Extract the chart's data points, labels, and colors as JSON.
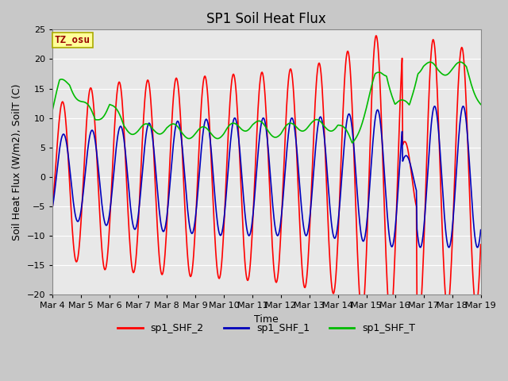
{
  "title": "SP1 Soil Heat Flux",
  "xlabel": "Time",
  "ylabel": "Soil Heat Flux (W/m2), SoilT (C)",
  "ylim": [
    -20,
    25
  ],
  "xlim": [
    0,
    15
  ],
  "xtick_labels": [
    "Mar 4",
    "Mar 5",
    "Mar 6",
    "Mar 7",
    "Mar 8",
    "Mar 9",
    "Mar 10",
    "Mar 11",
    "Mar 12",
    "Mar 13",
    "Mar 14",
    "Mar 15",
    "Mar 16",
    "Mar 17",
    "Mar 18",
    "Mar 19"
  ],
  "xtick_positions": [
    0,
    1,
    2,
    3,
    4,
    5,
    6,
    7,
    8,
    9,
    10,
    11,
    12,
    13,
    14,
    15
  ],
  "color_red": "#FF0000",
  "color_blue": "#0000BB",
  "color_green": "#00BB00",
  "fig_bg_color": "#C8C8C8",
  "plot_bg_color": "#E8E8E8",
  "grid_color": "#FFFFFF",
  "legend_labels": [
    "sp1_SHF_2",
    "sp1_SHF_1",
    "sp1_SHF_T"
  ],
  "tz_label": "TZ_osu",
  "tz_box_color": "#FFFF99",
  "tz_text_color": "#990000",
  "tz_edge_color": "#AAAA00",
  "title_fontsize": 12,
  "label_fontsize": 9,
  "tick_fontsize": 8,
  "legend_fontsize": 9,
  "linewidth": 1.2
}
